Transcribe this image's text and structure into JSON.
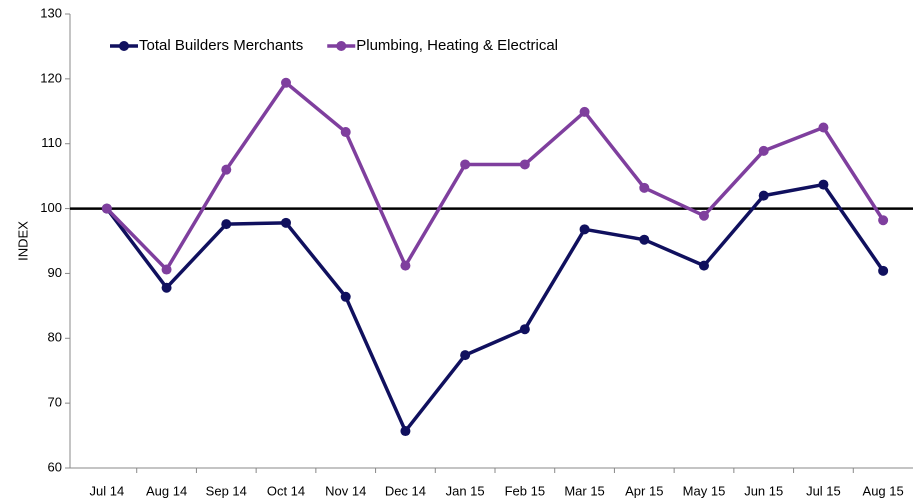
{
  "chart_data": {
    "type": "line",
    "y_label": "INDEX",
    "categories": [
      "Jul 14",
      "Aug 14",
      "Sep 14",
      "Oct 14",
      "Nov 14",
      "Dec 14",
      "Jan 15",
      "Feb 15",
      "Mar 15",
      "Apr 15",
      "May 15",
      "Jun 15",
      "Jul 15",
      "Aug 15"
    ],
    "series": [
      {
        "name": "Total Builders Merchants",
        "color": "#10105e",
        "values": [
          100,
          87.8,
          97.6,
          97.8,
          86.4,
          65.7,
          77.4,
          81.4,
          96.8,
          95.2,
          91.2,
          102,
          103.7,
          90.4
        ]
      },
      {
        "name": "Plumbing, Heating & Electrical",
        "color": "#7f3f9e",
        "values": [
          100,
          90.6,
          106,
          119.4,
          111.8,
          91.2,
          106.8,
          106.8,
          114.9,
          103.2,
          98.9,
          108.9,
          112.5,
          98.2
        ]
      }
    ],
    "ylim": [
      60,
      130
    ],
    "yticks": [
      60,
      70,
      80,
      90,
      100,
      110,
      120,
      130
    ],
    "reference_line": 100,
    "grid": false,
    "legend": "top-left"
  }
}
